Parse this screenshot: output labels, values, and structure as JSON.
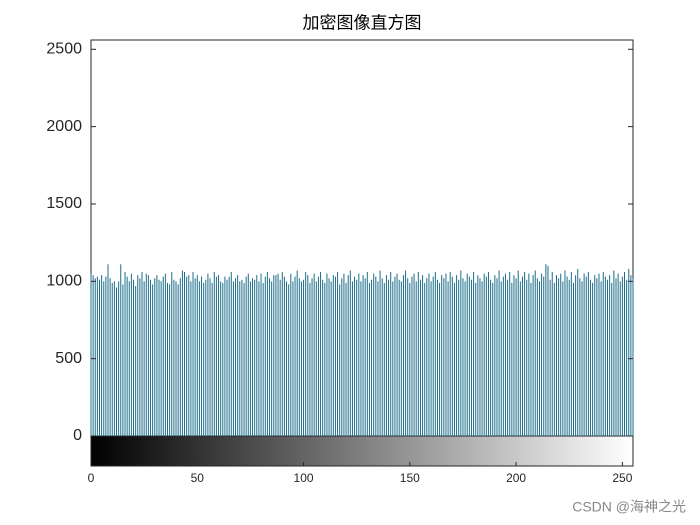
{
  "chart_data": {
    "type": "stem",
    "title": "加密图像直方图",
    "watermark": "CSDN @海神之光",
    "color": "#1d6d8a",
    "xlim": [
      0,
      255
    ],
    "xticks": [
      0,
      50,
      100,
      150,
      200,
      250
    ],
    "ylim": [
      0,
      2560
    ],
    "yticks": [
      0,
      500,
      1000,
      1500,
      2000,
      2500
    ],
    "x": [
      0,
      1,
      2,
      3,
      4,
      5,
      6,
      7,
      8,
      9,
      10,
      11,
      12,
      13,
      14,
      15,
      16,
      17,
      18,
      19,
      20,
      21,
      22,
      23,
      24,
      25,
      26,
      27,
      28,
      29,
      30,
      31,
      32,
      33,
      34,
      35,
      36,
      37,
      38,
      39,
      40,
      41,
      42,
      43,
      44,
      45,
      46,
      47,
      48,
      49,
      50,
      51,
      52,
      53,
      54,
      55,
      56,
      57,
      58,
      59,
      60,
      61,
      62,
      63,
      64,
      65,
      66,
      67,
      68,
      69,
      70,
      71,
      72,
      73,
      74,
      75,
      76,
      77,
      78,
      79,
      80,
      81,
      82,
      83,
      84,
      85,
      86,
      87,
      88,
      89,
      90,
      91,
      92,
      93,
      94,
      95,
      96,
      97,
      98,
      99,
      100,
      101,
      102,
      103,
      104,
      105,
      106,
      107,
      108,
      109,
      110,
      111,
      112,
      113,
      114,
      115,
      116,
      117,
      118,
      119,
      120,
      121,
      122,
      123,
      124,
      125,
      126,
      127,
      128,
      129,
      130,
      131,
      132,
      133,
      134,
      135,
      136,
      137,
      138,
      139,
      140,
      141,
      142,
      143,
      144,
      145,
      146,
      147,
      148,
      149,
      150,
      151,
      152,
      153,
      154,
      155,
      156,
      157,
      158,
      159,
      160,
      161,
      162,
      163,
      164,
      165,
      166,
      167,
      168,
      169,
      170,
      171,
      172,
      173,
      174,
      175,
      176,
      177,
      178,
      179,
      180,
      181,
      182,
      183,
      184,
      185,
      186,
      187,
      188,
      189,
      190,
      191,
      192,
      193,
      194,
      195,
      196,
      197,
      198,
      199,
      200,
      201,
      202,
      203,
      204,
      205,
      206,
      207,
      208,
      209,
      210,
      211,
      212,
      213,
      214,
      215,
      216,
      217,
      218,
      219,
      220,
      221,
      222,
      223,
      224,
      225,
      226,
      227,
      228,
      229,
      230,
      231,
      232,
      233,
      234,
      235,
      236,
      237,
      238,
      239,
      240,
      241,
      242,
      243,
      244,
      245,
      246,
      247,
      248,
      249,
      250,
      251,
      252,
      253,
      254,
      255
    ],
    "values": [
      1050,
      1040,
      1020,
      1030,
      1010,
      1040,
      1000,
      1030,
      1110,
      1020,
      990,
      1000,
      960,
      1000,
      1110,
      980,
      1060,
      1030,
      1000,
      1050,
      1010,
      970,
      1040,
      1020,
      1060,
      1000,
      1050,
      1040,
      1010,
      980,
      1020,
      1040,
      1010,
      1000,
      1030,
      1050,
      990,
      980,
      1060,
      1010,
      1000,
      980,
      1020,
      1070,
      1060,
      1030,
      1040,
      1000,
      1060,
      1020,
      1040,
      1000,
      1030,
      990,
      1010,
      1050,
      1020,
      990,
      1060,
      1030,
      1040,
      1000,
      990,
      1030,
      1010,
      1030,
      1060,
      1000,
      1020,
      1040,
      1000,
      1010,
      990,
      1030,
      1050,
      1000,
      1020,
      1010,
      1040,
      1000,
      1050,
      990,
      1030,
      1060,
      1020,
      1000,
      1040,
      1040,
      1050,
      1010,
      1060,
      1030,
      1000,
      980,
      1050,
      1000,
      1030,
      1070,
      1020,
      1000,
      1010,
      1060,
      1040,
      990,
      1020,
      1050,
      1000,
      1030,
      1060,
      1010,
      990,
      1050,
      1020,
      1000,
      1040,
      1030,
      1060,
      980,
      1020,
      1050,
      990,
      1040,
      1070,
      1000,
      1030,
      1010,
      1050,
      1000,
      1040,
      1020,
      1060,
      990,
      1010,
      1050,
      1030,
      1000,
      1070,
      1020,
      990,
      1040,
      1010,
      1060,
      1000,
      1030,
      1050,
      1010,
      1000,
      1040,
      1070,
      1020,
      990,
      1030,
      1050,
      1000,
      1060,
      1010,
      1040,
      990,
      1020,
      1050,
      1000,
      1030,
      1060,
      1010,
      990,
      1040,
      1020,
      1050,
      1000,
      1060,
      1030,
      990,
      1040,
      1010,
      1070,
      1020,
      1000,
      1050,
      1030,
      1010,
      1060,
      990,
      1040,
      1020,
      1000,
      1050,
      1030,
      1060,
      1010,
      990,
      1040,
      1020,
      1070,
      1000,
      1030,
      1050,
      1010,
      1060,
      990,
      1040,
      1020,
      1070,
      1000,
      1030,
      1060,
      1010,
      1050,
      990,
      1040,
      1070,
      1020,
      1000,
      1050,
      1030,
      1110,
      1100,
      1010,
      1060,
      990,
      1040,
      1020,
      1050,
      1000,
      1070,
      1030,
      1010,
      1060,
      990,
      1040,
      1080,
      1020,
      1000,
      1050,
      1030,
      1060,
      1010,
      990,
      1040,
      1020,
      1050,
      1000,
      1060,
      1030,
      1010,
      1040,
      990,
      1070,
      1020,
      1050,
      1000,
      1030,
      1060,
      1010,
      1080,
      1040,
      1020
    ]
  }
}
